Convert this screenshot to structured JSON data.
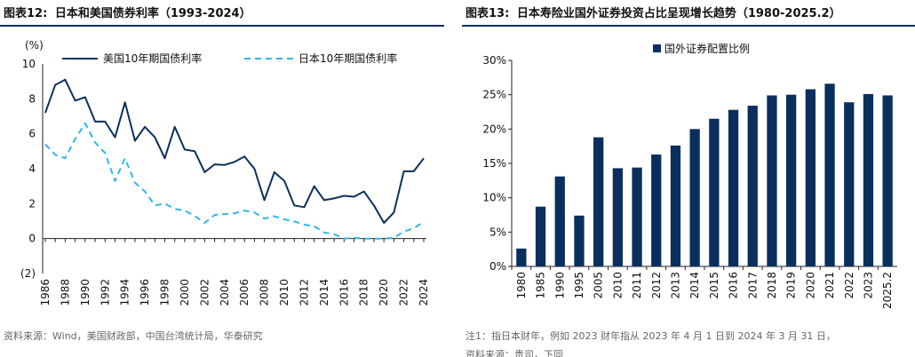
{
  "left": {
    "figure_no": "图表12:",
    "title": "日本和美国债券利率（1993-2024）",
    "source": "资料来源：Wind，美国财政部，中国台湾统计局，华泰研究"
  },
  "right": {
    "figure_no": "图表13:",
    "title": "日本寿险业国外证券投资占比呈现增长趋势（1980-2025.2）",
    "note": "注1：指日本财年，例如 2023 财年指从 2023 年 4 月 1 日到 2024 年 3 月 31 日，",
    "note2": "资料来源：贵司，下同"
  },
  "colors": {
    "us_line": "#0b2f5c",
    "jp_line": "#2fb8e6",
    "bar": "#0b2f5c",
    "title_rule": "#0b2f5c"
  },
  "chart_data": [
    {
      "type": "line",
      "title": "日本和美国债券利率（1993-2024）",
      "ylabel": "(%)",
      "ylim": [
        -2,
        10
      ],
      "yticks": [
        -2,
        0,
        2,
        4,
        6,
        8,
        10
      ],
      "ytick_labels": [
        "(2)",
        "0",
        "2",
        "4",
        "6",
        "8",
        "10"
      ],
      "xlim": [
        1986,
        2024
      ],
      "xticks": [
        "1986",
        "1988",
        "1990",
        "1992",
        "1994",
        "1996",
        "1998",
        "2000",
        "2002",
        "2004",
        "2006",
        "2008",
        "2010",
        "2012",
        "2014",
        "2016",
        "2018",
        "2020",
        "2022",
        "2024"
      ],
      "legend_position": "top",
      "series": [
        {
          "name": "美国10年期国债利率",
          "style": "solid",
          "x": [
            1986,
            1987,
            1988,
            1989,
            1990,
            1991,
            1992,
            1993,
            1994,
            1995,
            1996,
            1997,
            1998,
            1999,
            2000,
            2001,
            2002,
            2003,
            2004,
            2005,
            2006,
            2007,
            2008,
            2009,
            2010,
            2011,
            2012,
            2013,
            2014,
            2015,
            2016,
            2017,
            2018,
            2019,
            2020,
            2021,
            2022,
            2023,
            2024
          ],
          "values": [
            7.2,
            8.8,
            9.1,
            7.9,
            8.1,
            6.7,
            6.7,
            5.8,
            7.8,
            5.6,
            6.4,
            5.8,
            4.6,
            6.4,
            5.1,
            5.0,
            3.8,
            4.25,
            4.22,
            4.39,
            4.7,
            4.0,
            2.2,
            3.8,
            3.3,
            1.9,
            1.8,
            3.0,
            2.2,
            2.3,
            2.45,
            2.4,
            2.7,
            1.9,
            0.9,
            1.5,
            3.85,
            3.85,
            4.6
          ]
        },
        {
          "name": "日本10年期国债利率",
          "style": "dashed",
          "x": [
            1986,
            1987,
            1988,
            1989,
            1990,
            1991,
            1992,
            1993,
            1994,
            1995,
            1996,
            1997,
            1998,
            1999,
            2000,
            2001,
            2002,
            2003,
            2004,
            2005,
            2006,
            2007,
            2008,
            2009,
            2010,
            2011,
            2012,
            2013,
            2014,
            2015,
            2016,
            2017,
            2018,
            2019,
            2020,
            2021,
            2022,
            2023,
            2024
          ],
          "values": [
            5.4,
            4.8,
            4.6,
            5.7,
            6.6,
            5.5,
            4.9,
            3.3,
            4.6,
            3.2,
            2.7,
            1.9,
            2.0,
            1.7,
            1.6,
            1.3,
            0.9,
            1.35,
            1.4,
            1.45,
            1.6,
            1.5,
            1.15,
            1.28,
            1.1,
            0.98,
            0.8,
            0.7,
            0.35,
            0.25,
            0.0,
            0.05,
            0.0,
            0.0,
            0.0,
            0.05,
            0.4,
            0.6,
            0.95
          ]
        }
      ]
    },
    {
      "type": "bar",
      "title": "日本寿险业国外证券投资占比呈现增长趋势（1980-2025.2）",
      "ylim": [
        0,
        30
      ],
      "yticks": [
        0,
        5,
        10,
        15,
        20,
        25,
        30
      ],
      "ytick_labels": [
        "0%",
        "5%",
        "10%",
        "15%",
        "20%",
        "25%",
        "30%"
      ],
      "legend_position": "top",
      "series": [
        {
          "name": "国外证券配置比例",
          "categories": [
            "1980",
            "1985",
            "1990",
            "1995",
            "2005",
            "2010",
            "2011",
            "2012",
            "2013",
            "2014",
            "2015",
            "2016",
            "2017",
            "2018",
            "2019",
            "2020",
            "2021",
            "2022",
            "2023",
            "2025.2"
          ],
          "values": [
            2.6,
            8.7,
            13.1,
            7.4,
            18.8,
            14.3,
            14.4,
            16.3,
            17.6,
            20.0,
            21.5,
            22.8,
            23.4,
            24.9,
            25.0,
            25.8,
            26.6,
            23.9,
            25.1,
            24.9
          ]
        }
      ]
    }
  ]
}
